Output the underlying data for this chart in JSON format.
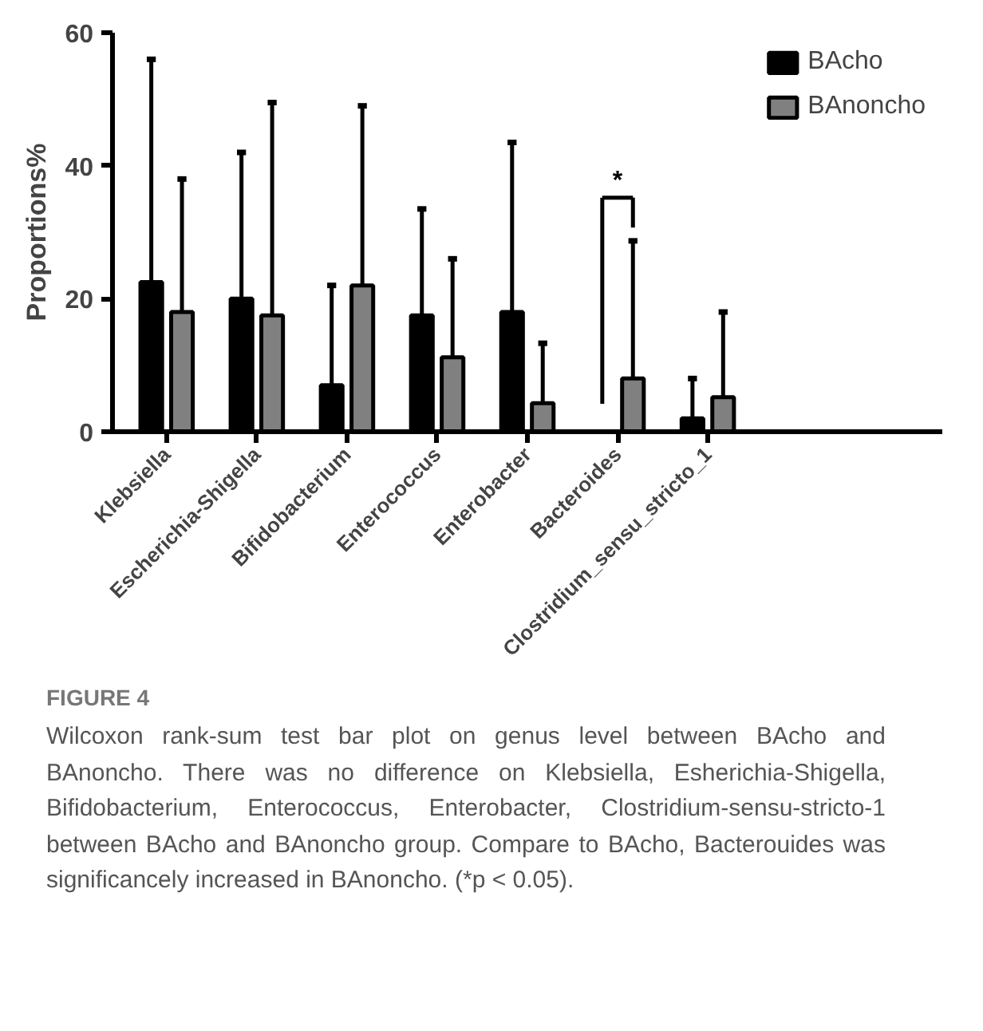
{
  "chart_data": {
    "type": "bar",
    "ylabel": "Proportions%",
    "categories": [
      "Klebsiella",
      "Escherichia-Shigella",
      "Bifidobacterium",
      "Enterococcus",
      "Enterobacter",
      "Bacteroides",
      "Clostridium_sensu_stricto_1"
    ],
    "series": [
      {
        "name": "BAcho",
        "color": "#000000",
        "values": [
          22.5,
          20,
          7,
          17.5,
          18,
          0,
          2
        ],
        "errors": [
          [
            22.5,
            56
          ],
          [
            20,
            42
          ],
          [
            7,
            22
          ],
          [
            17.5,
            33.5
          ],
          [
            18,
            43.5
          ],
          null,
          [
            2,
            8
          ]
        ]
      },
      {
        "name": "BAnoncho",
        "color": "#808080",
        "values": [
          18,
          17.5,
          22,
          11.2,
          4.3,
          8,
          5.2
        ],
        "errors": [
          [
            18,
            38
          ],
          [
            17.5,
            49.5
          ],
          [
            22,
            49
          ],
          [
            11.2,
            26
          ],
          [
            4.3,
            13.3
          ],
          [
            8,
            28.7
          ],
          [
            5.2,
            18
          ]
        ]
      }
    ],
    "ylim": [
      0,
      60
    ],
    "yticks": [
      0,
      20,
      40,
      60
    ],
    "grid": false,
    "legend": "top right",
    "annotations": [
      "*",
      "FIGURE 4",
      "Wilcoxon rank-sum test bar plot on genus level between BAcho and BAnoncho. There was no difference on Klebsiella, Esherichia-Shigella, Bifidobacterium, Enterococcus, Enterobacter, Clostridium-sensu-stricto-1 between BAcho and BAnoncho group. Compare to BAcho, Bacterouides was significancely increased in BAnoncho. (*p < 0.05)."
    ]
  }
}
